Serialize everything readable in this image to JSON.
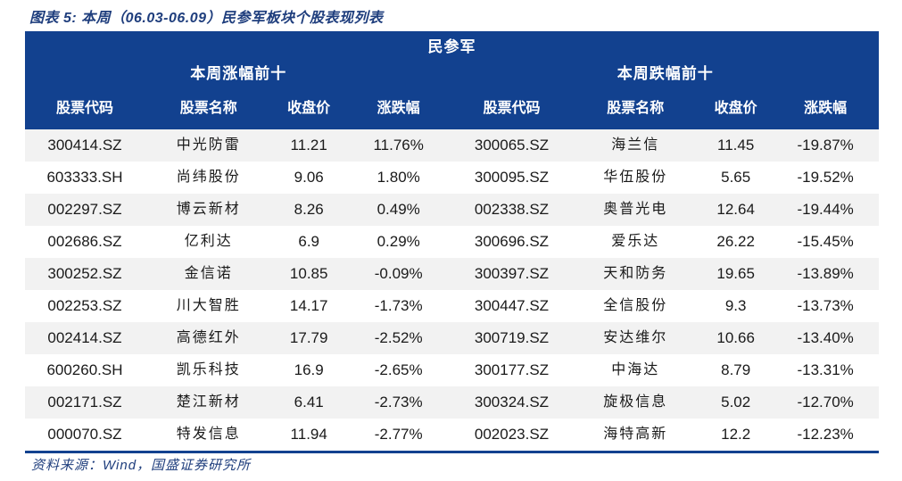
{
  "figure": {
    "caption": "图表 5:  本周（06.03-06.09）民参军板块个股表现列表",
    "source": "资料来源：Wind，国盛证券研究所"
  },
  "table": {
    "title": "民参军",
    "sections": [
      {
        "title": "本周涨幅前十",
        "columns": [
          "股票代码",
          "股票名称",
          "收盘价",
          "涨跌幅"
        ],
        "rows": [
          {
            "code": "300414.SZ",
            "name": "中光防雷",
            "close": "11.21",
            "change": "11.76%"
          },
          {
            "code": "603333.SH",
            "name": "尚纬股份",
            "close": "9.06",
            "change": "1.80%"
          },
          {
            "code": "002297.SZ",
            "name": "博云新材",
            "close": "8.26",
            "change": "0.49%"
          },
          {
            "code": "002686.SZ",
            "name": "亿利达",
            "close": "6.9",
            "change": "0.29%"
          },
          {
            "code": "300252.SZ",
            "name": "金信诺",
            "close": "10.85",
            "change": "-0.09%"
          },
          {
            "code": "002253.SZ",
            "name": "川大智胜",
            "close": "14.17",
            "change": "-1.73%"
          },
          {
            "code": "002414.SZ",
            "name": "高德红外",
            "close": "17.79",
            "change": "-2.52%"
          },
          {
            "code": "600260.SH",
            "name": "凯乐科技",
            "close": "16.9",
            "change": "-2.65%"
          },
          {
            "code": "002171.SZ",
            "name": "楚江新材",
            "close": "6.41",
            "change": "-2.73%"
          },
          {
            "code": "000070.SZ",
            "name": "特发信息",
            "close": "11.94",
            "change": "-2.77%"
          }
        ]
      },
      {
        "title": "本周跌幅前十",
        "columns": [
          "股票代码",
          "股票名称",
          "收盘价",
          "涨跌幅"
        ],
        "rows": [
          {
            "code": "300065.SZ",
            "name": "海兰信",
            "close": "11.45",
            "change": "-19.87%"
          },
          {
            "code": "300095.SZ",
            "name": "华伍股份",
            "close": "5.65",
            "change": "-19.52%"
          },
          {
            "code": "002338.SZ",
            "name": "奥普光电",
            "close": "12.64",
            "change": "-19.44%"
          },
          {
            "code": "300696.SZ",
            "name": "爱乐达",
            "close": "26.22",
            "change": "-15.45%"
          },
          {
            "code": "300397.SZ",
            "name": "天和防务",
            "close": "19.65",
            "change": "-13.89%"
          },
          {
            "code": "300447.SZ",
            "name": "全信股份",
            "close": "9.3",
            "change": "-13.73%"
          },
          {
            "code": "300719.SZ",
            "name": "安达维尔",
            "close": "10.66",
            "change": "-13.40%"
          },
          {
            "code": "300177.SZ",
            "name": "中海达",
            "close": "8.79",
            "change": "-13.31%"
          },
          {
            "code": "300324.SZ",
            "name": "旋极信息",
            "close": "5.02",
            "change": "-12.70%"
          },
          {
            "code": "002023.SZ",
            "name": "海特高新",
            "close": "12.2",
            "change": "-12.23%"
          }
        ]
      }
    ]
  },
  "colors": {
    "header_bg": "#12418f",
    "accent_text": "#1f3e7d",
    "row_stripe": "#f2f2f2",
    "body_text": "#1a1a1a"
  }
}
